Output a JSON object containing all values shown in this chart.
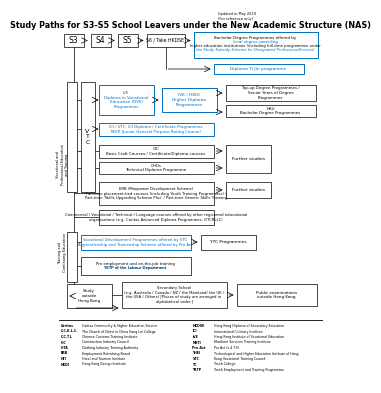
{
  "title": "Study Paths for S3-S5 School Leavers under the New Academic Structure (NAS)",
  "updated_text": "Updated in May 2019\n(For reference only)",
  "bg_color": "#ffffff",
  "blue": "#0070c0",
  "black": "#000000",
  "orange": "#c55a11"
}
